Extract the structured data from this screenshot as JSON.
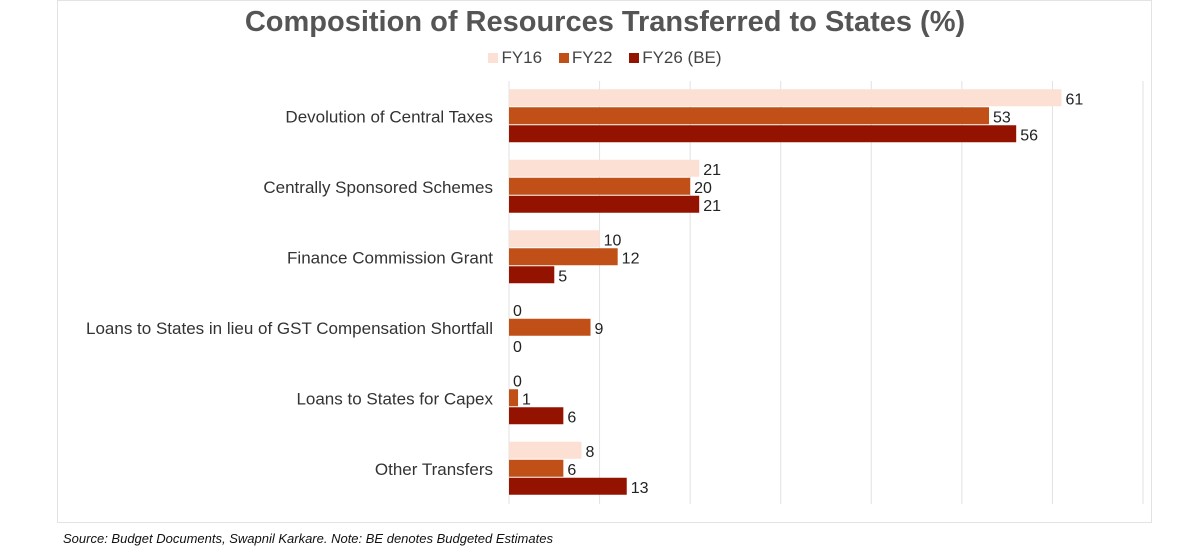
{
  "chart_data": {
    "type": "bar",
    "orientation": "horizontal",
    "title": "Composition of Resources Transferred to States (%)",
    "categories": [
      "Devolution of Central Taxes",
      "Centrally Sponsored Schemes",
      "Finance Commission Grant",
      "Loans to States in lieu of GST Compensation Shortfall",
      "Loans to States for Capex",
      "Other Transfers"
    ],
    "series": [
      {
        "name": "FY16",
        "color": "#fbe0d3",
        "values": [
          61,
          21,
          10,
          0,
          0,
          8
        ]
      },
      {
        "name": "FY22",
        "color": "#c05018",
        "values": [
          53,
          20,
          12,
          9,
          1,
          6
        ]
      },
      {
        "name": "FY26 (BE)",
        "color": "#931200",
        "values": [
          56,
          21,
          5,
          0,
          6,
          13
        ]
      }
    ],
    "xlim": [
      0,
      70
    ],
    "grid": true,
    "legend": "top"
  },
  "source": "Source: Budget Documents, Swapnil Karkare. Note: BE denotes Budgeted Estimates"
}
